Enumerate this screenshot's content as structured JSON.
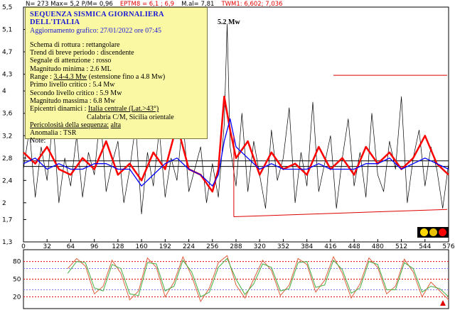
{
  "header": {
    "parts": [
      {
        "text": "N= 273 Max= 5,2  P/M= 0,96",
        "color": "#000000"
      },
      {
        "text": "EPTM8 = 6,1 ; 6,9",
        "color": "#e00000"
      },
      {
        "text": "M.al= 7,81",
        "color": "#000000"
      },
      {
        "text": "TWM1: 6,602; 7,036",
        "color": "#e00000"
      }
    ]
  },
  "info": {
    "title": "SEQUENZA SISMICA GIORNALIERA DELL'ITALIA",
    "updated": "Aggiornamento grafico: 27/01/2022 ore 07:45",
    "rupture": "Schema di rottura : rettangolare",
    "trend": "Trend di breve periodo : discendente",
    "signal": "Segnale di attenzione : rosso",
    "min_mag": "Magnitudo minima : 2.6 ML",
    "range_label": "Range :",
    "range_value": "3.4-4.3  Mw",
    "range_ext": "(estensione fino a 4.8 Mw)",
    "level1": "Primo livello critico : 5.4 Mw",
    "level2": "Secondo livello critico : 5.9 Mw",
    "max_mag": "Magnitudo massima : 6.8 Mw",
    "epic_label": "Epicentri dinamici :",
    "epic_value": "Italia centrale (Lat.>43°)",
    "epic_value2": "Calabria C/M, Sicilia orientale",
    "danger_label": "Pericolosità della sequenza:",
    "danger_value": "alta",
    "anomaly": "Anomalia : TSR",
    "note": "Note:"
  },
  "peak_label": "5.2 Mw",
  "traffic_lights": [
    "#ffd700",
    "#e8c000",
    "#ff0000"
  ],
  "chart_data": [
    {
      "type": "line",
      "title": "",
      "ylim": [
        1.3,
        5.5
      ],
      "xlim": [
        0,
        576
      ],
      "yticks": [
        "1,3",
        "1,7",
        "2",
        "2,4",
        "2,8",
        "3,2",
        "3,6",
        "4",
        "4,3",
        "4,7",
        "5,1",
        "5,5"
      ],
      "xticks": [
        "0",
        "32",
        "64",
        "96",
        "128",
        "160",
        "192",
        "224",
        "256",
        "288",
        "320",
        "352",
        "384",
        "416",
        "448",
        "480",
        "512",
        "544",
        "576"
      ],
      "series": [
        {
          "name": "",
          "color": "#000000",
          "x": [
            0,
            8,
            16,
            24,
            32,
            40,
            48,
            56,
            64,
            72,
            80,
            88,
            96,
            104,
            112,
            120,
            128,
            136,
            144,
            152,
            160,
            168,
            176,
            184,
            192,
            200,
            208,
            216,
            224,
            232,
            240,
            248,
            256,
            264,
            272,
            276,
            280,
            288,
            296,
            304,
            312,
            320,
            328,
            336,
            344,
            352,
            360,
            368,
            376,
            384,
            392,
            400,
            408,
            416,
            424,
            432,
            440,
            448,
            456,
            464,
            472,
            480,
            488,
            496,
            504,
            512,
            520,
            528,
            536,
            544,
            552,
            560,
            568,
            576
          ],
          "y": [
            2.6,
            3.3,
            2.1,
            3.0,
            2.4,
            3.5,
            2.0,
            2.8,
            2.3,
            3.2,
            2.1,
            2.9,
            2.5,
            3.6,
            2.2,
            2.7,
            3.1,
            2.0,
            2.6,
            3.4,
            1.8,
            2.9,
            2.3,
            3.3,
            2.1,
            2.8,
            2.4,
            3.5,
            2.2,
            2.6,
            3.0,
            2.0,
            2.7,
            2.1,
            3.4,
            5.2,
            3.0,
            2.3,
            3.6,
            2.2,
            3.1,
            2.5,
            1.9,
            3.3,
            2.4,
            2.8,
            3.7,
            2.0,
            2.9,
            2.3,
            3.8,
            2.2,
            2.7,
            3.2,
            1.9,
            2.8,
            3.5,
            2.3,
            2.9,
            2.1,
            3.6,
            2.5,
            2.2,
            3.1,
            2.6,
            3.9,
            2.0,
            2.8,
            3.3,
            2.3,
            3.0,
            2.6,
            1.9,
            2.7
          ]
        },
        {
          "name": "",
          "color": "#ff0000",
          "x": [
            0,
            16,
            32,
            48,
            64,
            80,
            96,
            112,
            128,
            144,
            160,
            176,
            192,
            208,
            224,
            240,
            256,
            264,
            272,
            280,
            288,
            304,
            320,
            336,
            352,
            368,
            384,
            400,
            416,
            432,
            448,
            464,
            480,
            496,
            512,
            528,
            544,
            560,
            576
          ],
          "y": [
            2.9,
            2.7,
            3.0,
            2.6,
            2.5,
            2.8,
            2.6,
            3.1,
            2.5,
            2.7,
            2.4,
            2.9,
            2.6,
            3.4,
            2.6,
            2.5,
            2.2,
            2.6,
            3.9,
            3.3,
            2.8,
            3.1,
            2.5,
            2.9,
            2.6,
            2.7,
            2.5,
            3.0,
            2.6,
            2.8,
            2.5,
            3.0,
            2.7,
            2.9,
            2.6,
            2.8,
            3.2,
            2.7,
            2.5
          ]
        },
        {
          "name": "",
          "color": "#0000ff",
          "x": [
            0,
            16,
            32,
            48,
            64,
            80,
            96,
            112,
            128,
            144,
            160,
            176,
            192,
            208,
            224,
            240,
            256,
            264,
            272,
            280,
            288,
            304,
            320,
            336,
            352,
            368,
            384,
            400,
            416,
            432,
            448,
            464,
            480,
            496,
            512,
            528,
            544,
            560,
            576
          ],
          "y": [
            2.7,
            2.8,
            2.6,
            2.7,
            2.6,
            2.6,
            2.7,
            2.7,
            2.6,
            2.6,
            2.3,
            2.5,
            2.7,
            2.8,
            2.6,
            2.5,
            2.3,
            2.5,
            3.1,
            3.5,
            3.0,
            2.8,
            2.6,
            2.7,
            2.6,
            2.6,
            2.6,
            2.7,
            2.6,
            2.6,
            2.6,
            2.7,
            2.7,
            2.8,
            2.6,
            2.7,
            2.8,
            2.7,
            2.6
          ]
        }
      ],
      "reference_lines": [
        {
          "color": "#000000",
          "x": [
            0,
            576
          ],
          "y": [
            2.65,
            2.65
          ]
        },
        {
          "color": "#000000",
          "x": [
            0,
            576
          ],
          "y": [
            2.75,
            2.75
          ]
        }
      ],
      "channel": {
        "color": "#e00000",
        "upper": {
          "x": [
            420,
            600
          ],
          "y": [
            4.28,
            4.28
          ]
        },
        "lower": {
          "x": [
            285,
            600
          ],
          "y": [
            1.75,
            1.88
          ]
        },
        "left": {
          "x": [
            285,
            285
          ],
          "y": [
            1.75,
            3.2
          ]
        }
      }
    },
    {
      "type": "line",
      "title": "",
      "ylim": [
        0,
        100
      ],
      "xlim": [
        0,
        576
      ],
      "yticks": [
        "80",
        "50",
        "20"
      ],
      "hlines": [
        {
          "y": 80,
          "color": "#e00000"
        },
        {
          "y": 68,
          "color": "#7777dd"
        },
        {
          "y": 50,
          "color": "#e00000"
        },
        {
          "y": 32,
          "color": "#7777dd"
        },
        {
          "y": 20,
          "color": "#e00000"
        }
      ],
      "series": [
        {
          "name": "",
          "color": "#e06040",
          "x": [
            60,
            72,
            84,
            96,
            108,
            120,
            132,
            144,
            156,
            168,
            180,
            192,
            204,
            216,
            228,
            240,
            252,
            264,
            276,
            288,
            300,
            312,
            324,
            336,
            348,
            360,
            372,
            384,
            396,
            408,
            420,
            432,
            444,
            456,
            468,
            480,
            492,
            504,
            516,
            528,
            540,
            552,
            564,
            576
          ],
          "y": [
            68,
            85,
            72,
            25,
            38,
            82,
            60,
            15,
            30,
            86,
            70,
            20,
            45,
            88,
            55,
            12,
            35,
            78,
            90,
            40,
            18,
            50,
            82,
            65,
            22,
            40,
            85,
            75,
            28,
            48,
            88,
            60,
            18,
            42,
            86,
            70,
            25,
            38,
            84,
            62,
            20,
            45,
            30,
            15
          ]
        },
        {
          "name": "",
          "color": "#40b040",
          "x": [
            60,
            72,
            84,
            96,
            108,
            120,
            132,
            144,
            156,
            168,
            180,
            192,
            204,
            216,
            228,
            240,
            252,
            264,
            276,
            288,
            300,
            312,
            324,
            336,
            348,
            360,
            372,
            384,
            396,
            408,
            420,
            432,
            444,
            456,
            468,
            480,
            492,
            504,
            516,
            528,
            540,
            552,
            564,
            576
          ],
          "y": [
            60,
            80,
            78,
            35,
            30,
            75,
            68,
            25,
            22,
            78,
            76,
            30,
            38,
            82,
            62,
            20,
            28,
            70,
            85,
            50,
            24,
            42,
            76,
            70,
            30,
            34,
            78,
            80,
            36,
            40,
            82,
            66,
            26,
            35,
            80,
            75,
            32,
            32,
            78,
            68,
            28,
            38,
            34,
            20
          ]
        }
      ]
    }
  ]
}
